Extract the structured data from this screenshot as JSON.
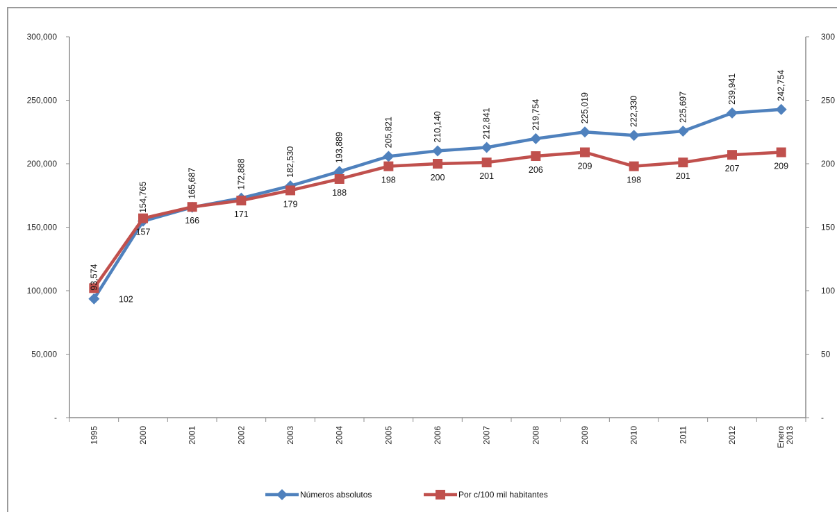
{
  "chart_data": {
    "type": "line",
    "title": "",
    "xlabel": "",
    "ylabel": "",
    "categories": [
      "1995",
      "2000",
      "2001",
      "2002",
      "2003",
      "2004",
      "2005",
      "2006",
      "2007",
      "2008",
      "2009",
      "2010",
      "2011",
      "2012",
      "Enero 2013"
    ],
    "left_axis": {
      "ylim": [
        0,
        300000
      ],
      "ticks": [
        {
          "value": 0,
          "label": "-"
        },
        {
          "value": 50000,
          "label": "50,000"
        },
        {
          "value": 100000,
          "label": "100,000"
        },
        {
          "value": 150000,
          "label": "150,000"
        },
        {
          "value": 200000,
          "label": "200,000"
        },
        {
          "value": 250000,
          "label": "250,000"
        },
        {
          "value": 300000,
          "label": "300,000"
        }
      ]
    },
    "right_axis": {
      "ylim": [
        0,
        300
      ],
      "ticks": [
        {
          "value": 0,
          "label": "-"
        },
        {
          "value": 50,
          "label": "50"
        },
        {
          "value": 100,
          "label": "100"
        },
        {
          "value": 150,
          "label": "150"
        },
        {
          "value": 200,
          "label": "200"
        },
        {
          "value": 250,
          "label": "250"
        },
        {
          "value": 300,
          "label": "300"
        }
      ]
    },
    "series": [
      {
        "name": "Números absolutos",
        "axis": "left",
        "color": "#4f81bd",
        "marker": "diamond",
        "values": [
          93574,
          154765,
          165687,
          172888,
          182530,
          193889,
          205821,
          210140,
          212841,
          219754,
          225019,
          222330,
          225697,
          239941,
          242754
        ],
        "labels": [
          "93,574",
          "154,765",
          "165,687",
          "172,888",
          "182,530",
          "193,889",
          "205,821",
          "210,140",
          "212,841",
          "219,754",
          "225,019",
          "222,330",
          "225,697",
          "239,941",
          "242,754"
        ]
      },
      {
        "name": "Por c/100 mil habitantes",
        "axis": "right",
        "color": "#c0504d",
        "marker": "square",
        "values": [
          102,
          157,
          166,
          171,
          179,
          188,
          198,
          200,
          201,
          206,
          209,
          198,
          201,
          207,
          209
        ],
        "labels": [
          "102",
          "157",
          "166",
          "171",
          "179",
          "188",
          "198",
          "200",
          "201",
          "206",
          "209",
          "198",
          "201",
          "207",
          "209"
        ]
      }
    ],
    "grid": false,
    "legend_position": "bottom"
  }
}
